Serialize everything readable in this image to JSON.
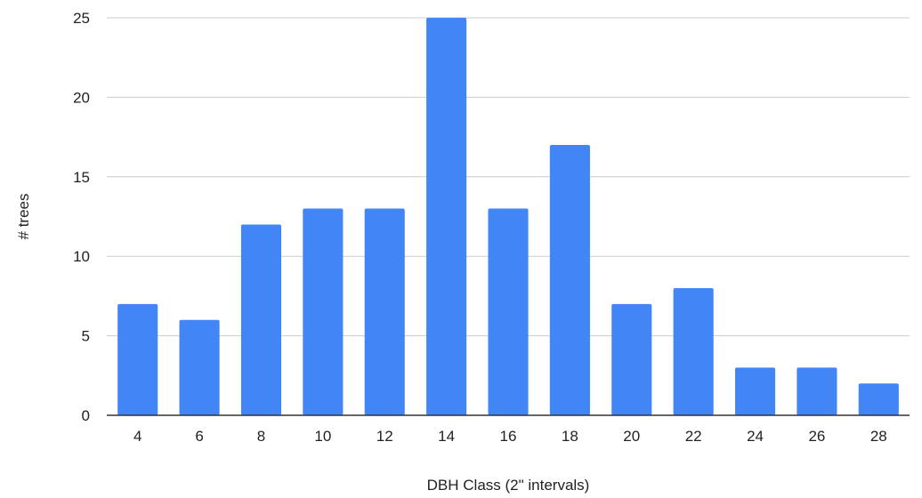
{
  "chart_data": {
    "type": "bar",
    "categories": [
      "4",
      "6",
      "8",
      "10",
      "12",
      "14",
      "16",
      "18",
      "20",
      "22",
      "24",
      "26",
      "28"
    ],
    "values": [
      7,
      6,
      12,
      13,
      13,
      25,
      13,
      17,
      7,
      8,
      3,
      3,
      2
    ],
    "xlabel": "DBH Class (2\" intervals)",
    "ylabel": "# trees",
    "ylim": [
      0,
      25
    ],
    "yticks": [
      0,
      5,
      10,
      15,
      20,
      25
    ],
    "grid": true,
    "legend": "none",
    "bar_color": "#4285F4",
    "grid_color": "#cccccc",
    "axis_color": "#333333"
  }
}
